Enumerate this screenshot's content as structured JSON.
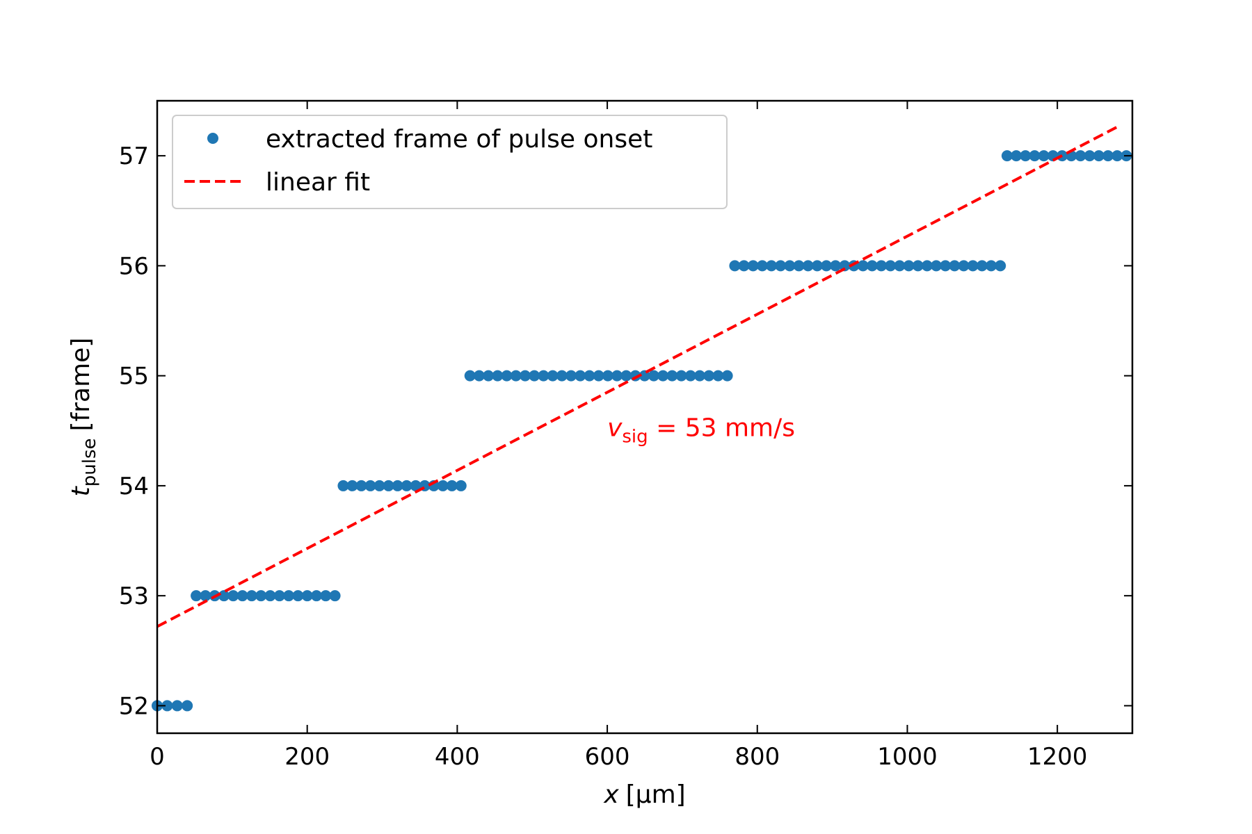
{
  "chart_data": {
    "type": "scatter",
    "xlabel_var": "x",
    "xlabel_unit": "[µm]",
    "ylabel_var": "t",
    "ylabel_sub": "pulse",
    "ylabel_unit": "[frame]",
    "xlim": [
      0,
      1300
    ],
    "ylim": [
      51.75,
      57.5
    ],
    "x_ticks": [
      0,
      200,
      400,
      600,
      800,
      1000,
      1200
    ],
    "y_ticks": [
      52,
      53,
      54,
      55,
      56,
      57
    ],
    "grid": false,
    "legend_position": "top-left",
    "colors": {
      "points": "#1f77b4",
      "fit": "#ff0000",
      "axes": "#000000",
      "legend_border": "#cccccc"
    },
    "series": [
      {
        "name": "extracted frame of pulse onset",
        "marker": "circle",
        "points": [
          {
            "x_range": [
              0,
              40
            ],
            "count": 4,
            "y": 52
          },
          {
            "x_range": [
              52,
              237
            ],
            "count": 16,
            "y": 53
          },
          {
            "x_range": [
              248,
              405
            ],
            "count": 14,
            "y": 54
          },
          {
            "x_range": [
              417,
              760
            ],
            "count": 29,
            "y": 55
          },
          {
            "x_range": [
              770,
              1124
            ],
            "count": 30,
            "y": 56
          },
          {
            "x_range": [
              1133,
              1292
            ],
            "count": 14,
            "y": 57
          }
        ]
      },
      {
        "name": "linear fit",
        "style": "dashed",
        "x": [
          0,
          1282
        ],
        "y": [
          52.72,
          57.27
        ]
      }
    ],
    "annotation": {
      "var": "v",
      "sub": "sig",
      "rest": " = 53 mm/s",
      "x": 600,
      "y": 54.4
    }
  }
}
